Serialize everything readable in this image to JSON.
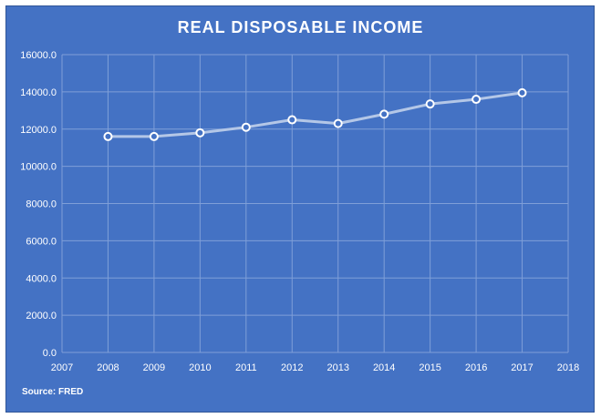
{
  "chart_data": {
    "type": "line",
    "title": "REAL DISPOSABLE INCOME",
    "source": "Source: FRED",
    "xlabel": "",
    "ylabel": "",
    "xlim": [
      2007,
      2018
    ],
    "ylim": [
      0,
      16000
    ],
    "x_ticks": [
      "2007",
      "2008",
      "2009",
      "2010",
      "2011",
      "2012",
      "2013",
      "2014",
      "2015",
      "2016",
      "2017",
      "2018"
    ],
    "y_ticks": [
      "0.0",
      "2000.0",
      "4000.0",
      "6000.0",
      "8000.0",
      "10000.0",
      "12000.0",
      "14000.0",
      "16000.0"
    ],
    "grid": true,
    "series": [
      {
        "x": [
          2008,
          2009,
          2010,
          2011,
          2012,
          2013,
          2014,
          2015,
          2016,
          2017
        ],
        "values": [
          11600,
          11600,
          11800,
          12100,
          12500,
          12300,
          12800,
          13350,
          13600,
          13950
        ]
      }
    ],
    "colors": {
      "background": "#4472c4",
      "line": "#b4c7e7",
      "marker_fill": "#4472c4",
      "marker_stroke": "#ffffff",
      "grid": "#7f9fd8",
      "text": "#ffffff"
    }
  }
}
